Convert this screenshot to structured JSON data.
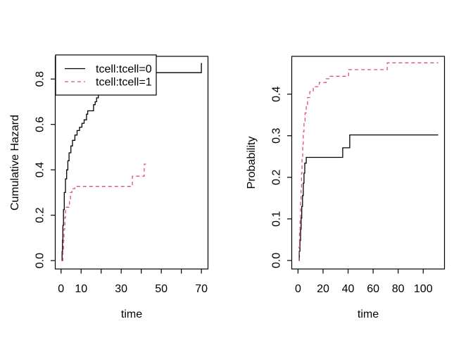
{
  "figure": {
    "background": "#ffffff",
    "foreground": "#000000",
    "accent_pink": "#DF536B",
    "layout": "two survival step plots side by side (R base graphics)"
  },
  "chart_data": [
    {
      "id": "cumulative-hazard",
      "type": "line",
      "subtype": "step",
      "title": "",
      "xlabel": "time",
      "ylabel": "Cumulative Hazard",
      "xlim": [
        -2.9,
        73.3
      ],
      "ylim": [
        -0.037,
        0.9
      ],
      "x_ticks": [
        0,
        10,
        20,
        30,
        40,
        50,
        60,
        70
      ],
      "x_tick_labels": [
        "0",
        "10",
        "",
        "30",
        "",
        "50",
        "",
        "70"
      ],
      "y_ticks": [
        0,
        0.2,
        0.4,
        0.6,
        0.8
      ],
      "y_tick_labels": [
        "0.0",
        "0.2",
        "0.4",
        "0.6",
        "0.8"
      ],
      "grid": false,
      "legend": {
        "position": "topleft",
        "entries": [
          {
            "label": "tcell:tcell=0",
            "color": "#000000",
            "linestyle": "solid"
          },
          {
            "label": "tcell:tcell=1",
            "color": "#DF536B",
            "linestyle": "dashed"
          }
        ]
      },
      "series": [
        {
          "name": "tcell:tcell=0",
          "color": "#000000",
          "linestyle": "solid",
          "step_points": [
            [
              0.3,
              0
            ],
            [
              0.5,
              0.04
            ],
            [
              0.7,
              0.09
            ],
            [
              0.9,
              0.155
            ],
            [
              1.2,
              0.225
            ],
            [
              1.6,
              0.3
            ],
            [
              2.2,
              0.36
            ],
            [
              2.8,
              0.4
            ],
            [
              3.4,
              0.44
            ],
            [
              4,
              0.475
            ],
            [
              4.9,
              0.505
            ],
            [
              5.7,
              0.53
            ],
            [
              6.9,
              0.553
            ],
            [
              8,
              0.573
            ],
            [
              9.2,
              0.588
            ],
            [
              10.4,
              0.605
            ],
            [
              11.5,
              0.62
            ],
            [
              12.7,
              0.645
            ],
            [
              13.3,
              0.66
            ],
            [
              16.2,
              0.687
            ],
            [
              17,
              0.7
            ],
            [
              17.7,
              0.717
            ],
            [
              18.6,
              0.735
            ],
            [
              19.6,
              0.752
            ],
            [
              21,
              0.78
            ],
            [
              26,
              0.8
            ],
            [
              31,
              0.828
            ],
            [
              70,
              0.868
            ],
            [
              70.3,
              0.868
            ]
          ]
        },
        {
          "name": "tcell:tcell=1",
          "color": "#DF536B",
          "linestyle": "dashed",
          "step_points": [
            [
              0.5,
              0
            ],
            [
              0.9,
              0.045
            ],
            [
              1.2,
              0.09
            ],
            [
              1.5,
              0.14
            ],
            [
              1.9,
              0.19
            ],
            [
              2.2,
              0.235
            ],
            [
              4.2,
              0.268
            ],
            [
              4.7,
              0.3
            ],
            [
              5.4,
              0.317
            ],
            [
              6.9,
              0.327
            ],
            [
              35.6,
              0.372
            ],
            [
              41.5,
              0.425
            ],
            [
              42.4,
              0.425
            ]
          ]
        }
      ]
    },
    {
      "id": "probability",
      "type": "line",
      "subtype": "step",
      "title": "",
      "xlabel": "time",
      "ylabel": "Probability",
      "xlim": [
        -5.0,
        117.0
      ],
      "ylim": [
        -0.0205,
        0.491
      ],
      "x_ticks": [
        0,
        20,
        40,
        60,
        80,
        100
      ],
      "x_tick_labels": [
        "0",
        "20",
        "40",
        "60",
        "80",
        "100"
      ],
      "y_ticks": [
        0,
        0.1,
        0.2,
        0.3,
        0.4
      ],
      "y_tick_labels": [
        "0.0",
        "0.1",
        "0.2",
        "0.3",
        "0.4"
      ],
      "grid": false,
      "legend": null,
      "series": [
        {
          "name": "tcell:tcell=0",
          "color": "#000000",
          "linestyle": "solid",
          "step_points": [
            [
              0.5,
              0
            ],
            [
              1,
              0.022
            ],
            [
              1.5,
              0.048
            ],
            [
              2,
              0.075
            ],
            [
              2.5,
              0.102
            ],
            [
              3,
              0.13
            ],
            [
              3.6,
              0.156
            ],
            [
              4.2,
              0.186
            ],
            [
              4.8,
              0.21
            ],
            [
              5.4,
              0.234
            ],
            [
              6.6,
              0.248
            ],
            [
              35.7,
              0.271
            ],
            [
              41.3,
              0.302
            ],
            [
              112,
              0.302
            ]
          ]
        },
        {
          "name": "tcell:tcell=1",
          "color": "#DF536B",
          "linestyle": "dashed",
          "step_points": [
            [
              0.4,
              0
            ],
            [
              0.8,
              0.032
            ],
            [
              1.2,
              0.066
            ],
            [
              1.6,
              0.1
            ],
            [
              2,
              0.14
            ],
            [
              2.4,
              0.176
            ],
            [
              2.8,
              0.21
            ],
            [
              3.2,
              0.245
            ],
            [
              3.7,
              0.28
            ],
            [
              4.2,
              0.31
            ],
            [
              4.8,
              0.335
            ],
            [
              5.6,
              0.355
            ],
            [
              6.6,
              0.375
            ],
            [
              7.6,
              0.392
            ],
            [
              9.4,
              0.406
            ],
            [
              12.2,
              0.418
            ],
            [
              17,
              0.428
            ],
            [
              22.5,
              0.437
            ],
            [
              25.3,
              0.443
            ],
            [
              40.4,
              0.459
            ],
            [
              71.3,
              0.4755
            ],
            [
              112,
              0.4755
            ]
          ]
        }
      ]
    }
  ]
}
